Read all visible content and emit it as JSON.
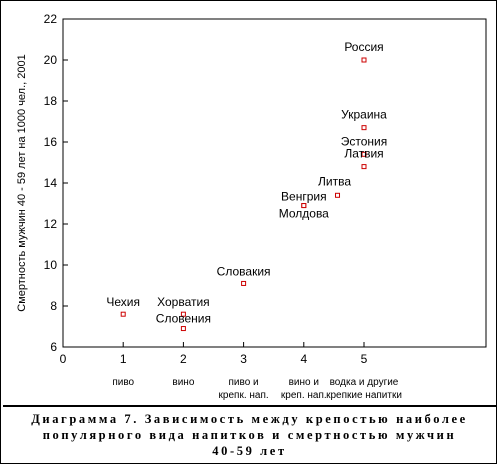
{
  "chart_data": {
    "type": "scatter",
    "ylabel": "Смертность мужчин 40 - 59 лет на 1000 чел., 2001",
    "xlabel": "",
    "xlim": [
      0,
      5
    ],
    "ylim": [
      6,
      22
    ],
    "x_ticks": [
      0,
      1,
      2,
      3,
      4,
      5
    ],
    "y_ticks": [
      6,
      8,
      10,
      12,
      14,
      16,
      18,
      20,
      22
    ],
    "grid": false,
    "marker_color": "#cc0000",
    "points": [
      {
        "label": "Россия",
        "x": 5,
        "y": 20.0
      },
      {
        "label": "Украина",
        "x": 5,
        "y": 16.7
      },
      {
        "label": "Эстония",
        "x": 5,
        "y": 15.4
      },
      {
        "label": "Латвия",
        "x": 5,
        "y": 14.8
      },
      {
        "label": "Литва",
        "x": 4.56,
        "y": 13.4
      },
      {
        "label": "Венгрия",
        "x": 4.0,
        "y": 12.9
      },
      {
        "label": "Молдова",
        "x": 4.0,
        "y": 12.9
      },
      {
        "label": "Словакия",
        "x": 3.0,
        "y": 9.1
      },
      {
        "label": "Чехия",
        "x": 1.0,
        "y": 7.6
      },
      {
        "label": "Хорватия",
        "x": 2.0,
        "y": 7.6
      },
      {
        "label": "Словения",
        "x": 2.0,
        "y": 6.9
      }
    ],
    "categories": [
      {
        "x": 1,
        "lines": [
          "пиво"
        ]
      },
      {
        "x": 2,
        "lines": [
          "вино"
        ]
      },
      {
        "x": 3,
        "lines": [
          "пиво и",
          "крепк. нап."
        ]
      },
      {
        "x": 4,
        "lines": [
          "вино и",
          "креп. нап."
        ]
      },
      {
        "x": 5,
        "lines": [
          "водка и другие",
          "крепкие напитки"
        ]
      }
    ]
  },
  "caption": {
    "lines": [
      "Диаграмма 7. Зависимость между крепостью наиболее",
      "популярного вида напитков и смертностью мужчин",
      "40-59 лет"
    ]
  }
}
